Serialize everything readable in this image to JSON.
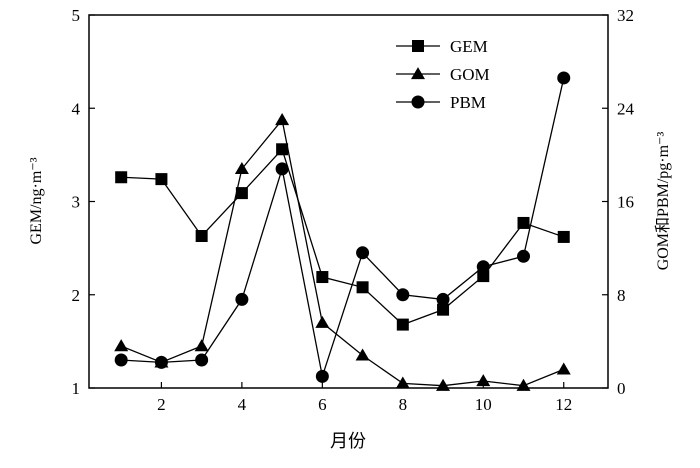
{
  "chart_data": {
    "type": "line",
    "x": [
      1,
      2,
      3,
      4,
      5,
      6,
      7,
      8,
      9,
      10,
      11,
      12
    ],
    "xlabel": "月份",
    "xlim": [
      0.2,
      13.1
    ],
    "xticks": [
      2,
      4,
      6,
      8,
      10,
      12
    ],
    "ylabel": "GEM/ng·m⁻³",
    "ylim": [
      1,
      5
    ],
    "yticks": [
      1,
      2,
      3,
      4,
      5
    ],
    "y2label": "GOM和PBM/pg·m⁻³",
    "y2lim": [
      0,
      32
    ],
    "y2ticks": [
      0,
      8,
      16,
      24,
      32
    ],
    "grid": false,
    "legend_position": "top-right",
    "series": [
      {
        "name": "GEM",
        "axis": "left",
        "marker": "square",
        "values": [
          3.26,
          3.24,
          2.63,
          3.09,
          3.56,
          2.19,
          2.08,
          1.68,
          1.84,
          2.2,
          2.77,
          2.62
        ]
      },
      {
        "name": "GOM",
        "axis": "right",
        "marker": "triangle",
        "values": [
          3.6,
          2.2,
          3.6,
          18.8,
          23.0,
          5.6,
          2.8,
          0.4,
          0.2,
          0.6,
          0.2,
          1.6
        ]
      },
      {
        "name": "PBM",
        "axis": "right",
        "marker": "circle",
        "values": [
          2.4,
          2.2,
          2.4,
          7.6,
          18.8,
          1.0,
          11.6,
          8.0,
          7.6,
          10.4,
          11.3,
          26.6
        ]
      }
    ]
  }
}
